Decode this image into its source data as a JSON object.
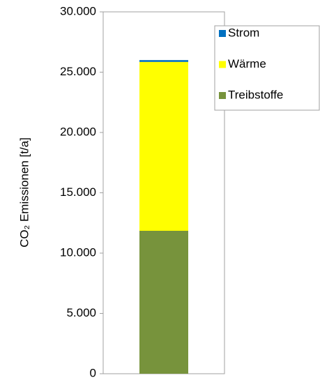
{
  "chart_data": {
    "type": "bar",
    "stacked": true,
    "y_label": "CO₂ Emissionen [t/a]",
    "categories": [
      null
    ],
    "series": [
      {
        "name": "Treibstoffe",
        "color": "#77933c",
        "values": [
          11850
        ]
      },
      {
        "name": "Wärme",
        "color": "#ffff00",
        "values": [
          14000
        ]
      },
      {
        "name": "Strom",
        "color": "#0070c0",
        "values": [
          150
        ]
      }
    ],
    "ylim": [
      0,
      30000
    ],
    "yticks": [
      0,
      {
        "value": 5000,
        "label": "5.000"
      },
      {
        "value": 10000,
        "label": "10.000"
      },
      {
        "value": 15000,
        "label": "15.000"
      },
      {
        "value": 20000,
        "label": "20.000"
      },
      {
        "value": 25000,
        "label": "25.000"
      },
      {
        "value": 30000,
        "label": "30.000"
      }
    ],
    "grid": false,
    "legend": "top-right"
  }
}
